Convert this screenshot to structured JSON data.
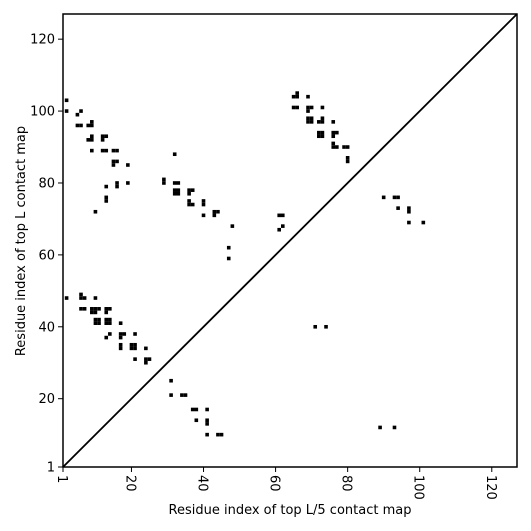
{
  "chart_data": {
    "type": "scatter",
    "title": "",
    "xlabel": "Residue index of top L/5 contact map",
    "ylabel": "Residue index of top L contact map",
    "xlim": [
      1,
      127
    ],
    "ylim": [
      1,
      127
    ],
    "xticks": [
      1,
      20,
      40,
      60,
      80,
      100,
      120
    ],
    "yticks": [
      1,
      20,
      40,
      60,
      80,
      100,
      120
    ],
    "xtick_labels": [
      "1",
      "20",
      "40",
      "60",
      "80",
      "100",
      "120"
    ],
    "ytick_labels": [
      "1",
      "20",
      "40",
      "60",
      "80",
      "100",
      "120"
    ],
    "xtick_label_rotation": 90,
    "diagonal_line": true,
    "grid": false,
    "marker": "square",
    "marker_color": "#000000",
    "series": [
      {
        "points": [
          [
            2,
            103
          ],
          [
            2,
            100
          ],
          [
            6,
            100
          ],
          [
            5,
            99
          ],
          [
            5,
            96
          ],
          [
            6,
            96
          ],
          [
            8,
            96
          ],
          [
            9,
            97
          ],
          [
            9,
            96
          ],
          [
            8,
            92
          ],
          [
            9,
            92
          ],
          [
            9,
            93
          ],
          [
            12,
            93
          ],
          [
            13,
            93
          ],
          [
            12,
            92
          ],
          [
            9,
            89
          ],
          [
            12,
            89
          ],
          [
            13,
            89
          ],
          [
            15,
            89
          ],
          [
            16,
            89
          ],
          [
            15,
            86
          ],
          [
            16,
            86
          ],
          [
            15,
            85
          ],
          [
            19,
            85
          ],
          [
            16,
            80
          ],
          [
            16,
            79
          ],
          [
            19,
            80
          ],
          [
            13,
            79
          ],
          [
            13,
            76
          ],
          [
            13,
            75
          ],
          [
            10,
            72
          ],
          [
            29,
            81
          ],
          [
            29,
            80
          ],
          [
            32,
            80
          ],
          [
            33,
            80
          ],
          [
            32,
            78
          ],
          [
            33,
            78
          ],
          [
            32,
            77
          ],
          [
            33,
            77
          ],
          [
            32,
            88
          ],
          [
            36,
            78
          ],
          [
            37,
            78
          ],
          [
            36,
            77
          ],
          [
            36,
            75
          ],
          [
            37,
            74
          ],
          [
            36,
            74
          ],
          [
            40,
            75
          ],
          [
            40,
            74
          ],
          [
            40,
            71
          ],
          [
            43,
            72
          ],
          [
            44,
            72
          ],
          [
            43,
            71
          ],
          [
            48,
            68
          ],
          [
            47,
            62
          ],
          [
            47,
            59
          ],
          [
            61,
            71
          ],
          [
            62,
            71
          ],
          [
            62,
            68
          ],
          [
            61,
            67
          ],
          [
            65,
            104
          ],
          [
            66,
            104
          ],
          [
            66,
            105
          ],
          [
            65,
            101
          ],
          [
            66,
            101
          ],
          [
            69,
            104
          ],
          [
            69,
            101
          ],
          [
            70,
            101
          ],
          [
            69,
            100
          ],
          [
            69,
            98
          ],
          [
            70,
            98
          ],
          [
            69,
            97
          ],
          [
            70,
            97
          ],
          [
            72,
            97
          ],
          [
            73,
            97
          ],
          [
            73,
            98
          ],
          [
            73,
            101
          ],
          [
            72,
            94
          ],
          [
            73,
            94
          ],
          [
            72,
            93
          ],
          [
            73,
            93
          ],
          [
            76,
            97
          ],
          [
            76,
            94
          ],
          [
            77,
            94
          ],
          [
            76,
            93
          ],
          [
            76,
            91
          ],
          [
            76,
            90
          ],
          [
            77,
            90
          ],
          [
            79,
            90
          ],
          [
            80,
            90
          ],
          [
            80,
            87
          ],
          [
            80,
            86
          ],
          [
            2,
            48
          ],
          [
            6,
            49
          ],
          [
            6,
            48
          ],
          [
            7,
            48
          ],
          [
            10,
            48
          ],
          [
            6,
            45
          ],
          [
            7,
            45
          ],
          [
            9,
            45
          ],
          [
            10,
            45
          ],
          [
            11,
            45
          ],
          [
            9,
            44
          ],
          [
            10,
            44
          ],
          [
            13,
            45
          ],
          [
            13,
            44
          ],
          [
            14,
            45
          ],
          [
            10,
            42
          ],
          [
            11,
            42
          ],
          [
            10,
            41
          ],
          [
            11,
            41
          ],
          [
            13,
            42
          ],
          [
            14,
            42
          ],
          [
            13,
            41
          ],
          [
            14,
            41
          ],
          [
            17,
            41
          ],
          [
            14,
            38
          ],
          [
            13,
            37
          ],
          [
            17,
            38
          ],
          [
            18,
            38
          ],
          [
            17,
            37
          ],
          [
            17,
            35
          ],
          [
            17,
            34
          ],
          [
            21,
            38
          ],
          [
            20,
            35
          ],
          [
            21,
            35
          ],
          [
            20,
            34
          ],
          [
            21,
            34
          ],
          [
            24,
            34
          ],
          [
            21,
            31
          ],
          [
            24,
            31
          ],
          [
            25,
            31
          ],
          [
            24,
            30
          ],
          [
            71,
            40
          ],
          [
            74,
            40
          ],
          [
            90,
            76
          ],
          [
            93,
            76
          ],
          [
            94,
            76
          ],
          [
            94,
            73
          ],
          [
            97,
            73
          ],
          [
            97,
            72
          ],
          [
            97,
            69
          ],
          [
            101,
            69
          ],
          [
            31,
            25
          ],
          [
            31,
            21
          ],
          [
            34,
            21
          ],
          [
            35,
            21
          ],
          [
            37,
            17
          ],
          [
            38,
            17
          ],
          [
            41,
            17
          ],
          [
            38,
            14
          ],
          [
            41,
            14
          ],
          [
            41,
            13
          ],
          [
            41,
            10
          ],
          [
            44,
            10
          ],
          [
            45,
            10
          ],
          [
            89,
            12
          ],
          [
            93,
            12
          ]
        ]
      }
    ]
  }
}
